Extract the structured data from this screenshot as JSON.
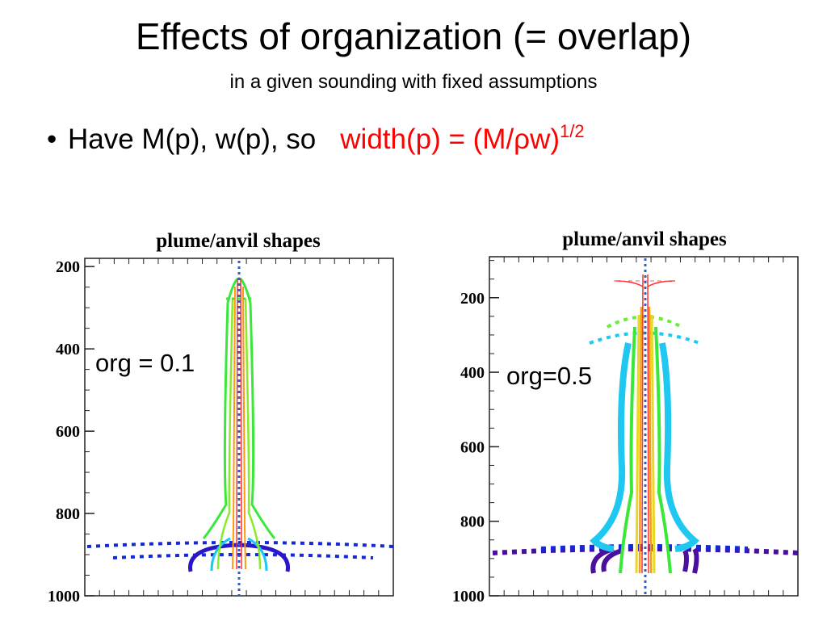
{
  "slide": {
    "title": "Effects of organization (= overlap)",
    "subtitle": "in a given sounding with fixed assumptions",
    "bullet": {
      "symbol": "•",
      "text": "Have M(p), w(p), so",
      "formula_main": "width(p) = (M/ρw)",
      "formula_exp": "1/2",
      "formula_color": "#ff0000"
    }
  },
  "chart_data": [
    {
      "type": "line",
      "title": "plume/anvil shapes",
      "annotation": "org = 0.1",
      "yticks": [
        "200",
        "400",
        "600",
        "800",
        "1000"
      ],
      "y_values": [
        200,
        400,
        600,
        800,
        1000
      ],
      "ylim": [
        1000,
        180
      ]
    },
    {
      "type": "line",
      "title": "plume/anvil shapes",
      "annotation": "org=0.5",
      "yticks": [
        "200",
        "400",
        "600",
        "800",
        "1000"
      ],
      "y_values": [
        200,
        400,
        600,
        800,
        1000
      ],
      "ylim": [
        1000,
        90
      ]
    }
  ],
  "colors": {
    "purple": "#4b0fa0",
    "blue": "#1428d8",
    "cyan": "#1ec8f0",
    "green": "#3ae83a",
    "yellow": "#e8d820",
    "orange": "#ff9a10",
    "red": "#ff3030"
  }
}
